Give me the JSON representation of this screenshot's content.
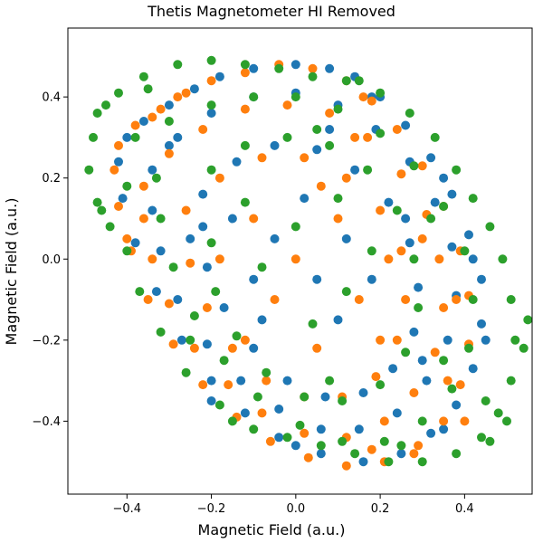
{
  "chart_data": {
    "type": "scatter",
    "title": "Thetis Magnetometer HI Removed",
    "xlabel": "Magnetic Field (a.u.)",
    "ylabel": "Magnetic Field (a.u.)",
    "xlim": [
      -0.54,
      0.56
    ],
    "ylim": [
      -0.58,
      0.57
    ],
    "xticks": [
      -0.4,
      -0.2,
      0.0,
      0.2,
      0.4
    ],
    "xtick_labels": [
      "−0.4",
      "−0.2",
      "0.0",
      "0.2",
      "0.4"
    ],
    "yticks": [
      -0.4,
      -0.2,
      0.0,
      0.2,
      0.4
    ],
    "ytick_labels": [
      "−0.4",
      "−0.2",
      "0.0",
      "0.2",
      "0.4"
    ],
    "grid": false,
    "series": [
      {
        "color": "#1f77b4",
        "points": [
          [
            -0.4,
            0.3
          ],
          [
            -0.36,
            0.34
          ],
          [
            -0.3,
            0.38
          ],
          [
            -0.24,
            0.42
          ],
          [
            -0.18,
            0.45
          ],
          [
            -0.1,
            0.47
          ],
          [
            0.0,
            0.48
          ],
          [
            0.08,
            0.47
          ],
          [
            0.14,
            0.45
          ],
          [
            0.2,
            0.4
          ],
          [
            0.26,
            0.33
          ],
          [
            0.32,
            0.25
          ],
          [
            0.37,
            0.16
          ],
          [
            0.41,
            0.06
          ],
          [
            0.44,
            -0.05
          ],
          [
            0.44,
            -0.16
          ],
          [
            0.42,
            -0.27
          ],
          [
            0.38,
            -0.36
          ],
          [
            0.32,
            -0.43
          ],
          [
            0.25,
            -0.48
          ],
          [
            0.16,
            -0.5
          ],
          [
            0.06,
            -0.48
          ],
          [
            -0.04,
            -0.44
          ],
          [
            -0.12,
            -0.38
          ],
          [
            -0.2,
            -0.3
          ],
          [
            -0.27,
            -0.2
          ],
          [
            -0.33,
            -0.08
          ],
          [
            -0.38,
            0.04
          ],
          [
            -0.41,
            0.15
          ],
          [
            -0.42,
            0.24
          ],
          [
            -0.34,
            0.22
          ],
          [
            -0.28,
            0.3
          ],
          [
            -0.2,
            0.36
          ],
          [
            -0.1,
            0.4
          ],
          [
            0.0,
            0.41
          ],
          [
            0.1,
            0.38
          ],
          [
            0.19,
            0.32
          ],
          [
            0.27,
            0.24
          ],
          [
            0.33,
            0.14
          ],
          [
            0.37,
            0.03
          ],
          [
            0.38,
            -0.09
          ],
          [
            0.36,
            -0.2
          ],
          [
            0.31,
            -0.3
          ],
          [
            0.24,
            -0.38
          ],
          [
            0.15,
            -0.42
          ],
          [
            0.06,
            -0.42
          ],
          [
            -0.04,
            -0.37
          ],
          [
            -0.13,
            -0.3
          ],
          [
            -0.21,
            -0.21
          ],
          [
            -0.28,
            -0.1
          ],
          [
            -0.32,
            0.02
          ],
          [
            -0.34,
            0.12
          ],
          [
            -0.22,
            0.16
          ],
          [
            -0.14,
            0.24
          ],
          [
            -0.05,
            0.28
          ],
          [
            0.05,
            0.27
          ],
          [
            0.14,
            0.22
          ],
          [
            0.22,
            0.14
          ],
          [
            0.27,
            0.04
          ],
          [
            0.29,
            -0.07
          ],
          [
            0.28,
            -0.18
          ],
          [
            0.23,
            -0.27
          ],
          [
            0.16,
            -0.33
          ],
          [
            0.07,
            -0.34
          ],
          [
            -0.02,
            -0.3
          ],
          [
            -0.1,
            -0.22
          ],
          [
            -0.17,
            -0.12
          ],
          [
            -0.21,
            -0.02
          ],
          [
            -0.22,
            0.08
          ],
          [
            0.12,
            0.05
          ],
          [
            0.05,
            -0.05
          ],
          [
            -0.05,
            0.05
          ],
          [
            0.1,
            -0.15
          ],
          [
            -0.1,
            -0.05
          ],
          [
            0.02,
            0.15
          ],
          [
            0.18,
            -0.05
          ],
          [
            -0.15,
            0.1
          ],
          [
            0.08,
            0.32
          ],
          [
            -0.25,
            0.05
          ],
          [
            0.3,
            -0.25
          ],
          [
            0.45,
            -0.2
          ],
          [
            0.42,
            0.0
          ],
          [
            0.35,
            0.2
          ],
          [
            0.18,
            0.4
          ],
          [
            -0.2,
            -0.35
          ],
          [
            0.0,
            -0.46
          ],
          [
            0.35,
            -0.42
          ],
          [
            -0.3,
            0.28
          ],
          [
            0.26,
            0.1
          ],
          [
            -0.08,
            -0.15
          ]
        ]
      },
      {
        "color": "#ff7f0e",
        "points": [
          [
            -0.42,
            0.28
          ],
          [
            -0.38,
            0.33
          ],
          [
            -0.32,
            0.37
          ],
          [
            -0.26,
            0.41
          ],
          [
            -0.2,
            0.44
          ],
          [
            -0.12,
            0.46
          ],
          [
            -0.04,
            0.48
          ],
          [
            0.04,
            0.47
          ],
          [
            0.12,
            0.44
          ],
          [
            0.18,
            0.39
          ],
          [
            0.24,
            0.32
          ],
          [
            0.3,
            0.23
          ],
          [
            0.35,
            0.13
          ],
          [
            0.39,
            0.02
          ],
          [
            0.41,
            -0.09
          ],
          [
            0.41,
            -0.21
          ],
          [
            0.39,
            -0.31
          ],
          [
            0.35,
            -0.4
          ],
          [
            0.29,
            -0.46
          ],
          [
            0.21,
            -0.5
          ],
          [
            0.12,
            -0.51
          ],
          [
            0.03,
            -0.49
          ],
          [
            -0.06,
            -0.45
          ],
          [
            -0.14,
            -0.39
          ],
          [
            -0.22,
            -0.31
          ],
          [
            -0.29,
            -0.21
          ],
          [
            -0.35,
            -0.1
          ],
          [
            -0.39,
            0.02
          ],
          [
            -0.42,
            0.13
          ],
          [
            -0.43,
            0.22
          ],
          [
            -0.36,
            0.18
          ],
          [
            -0.3,
            0.26
          ],
          [
            -0.22,
            0.32
          ],
          [
            -0.12,
            0.37
          ],
          [
            -0.02,
            0.38
          ],
          [
            0.08,
            0.36
          ],
          [
            0.17,
            0.3
          ],
          [
            0.25,
            0.21
          ],
          [
            0.31,
            0.11
          ],
          [
            0.34,
            0.0
          ],
          [
            0.35,
            -0.12
          ],
          [
            0.33,
            -0.23
          ],
          [
            0.28,
            -0.33
          ],
          [
            0.21,
            -0.4
          ],
          [
            0.12,
            -0.44
          ],
          [
            0.02,
            -0.43
          ],
          [
            -0.08,
            -0.38
          ],
          [
            -0.16,
            -0.31
          ],
          [
            -0.24,
            -0.22
          ],
          [
            -0.3,
            -0.11
          ],
          [
            -0.34,
            0.0
          ],
          [
            -0.36,
            0.1
          ],
          [
            -0.26,
            0.12
          ],
          [
            -0.18,
            0.2
          ],
          [
            -0.08,
            0.25
          ],
          [
            0.02,
            0.25
          ],
          [
            0.12,
            0.2
          ],
          [
            0.2,
            0.12
          ],
          [
            0.25,
            0.02
          ],
          [
            0.26,
            -0.1
          ],
          [
            0.24,
            -0.2
          ],
          [
            0.19,
            -0.29
          ],
          [
            0.11,
            -0.34
          ],
          [
            0.02,
            -0.34
          ],
          [
            -0.07,
            -0.3
          ],
          [
            -0.15,
            -0.22
          ],
          [
            -0.21,
            -0.12
          ],
          [
            -0.25,
            -0.01
          ],
          [
            0.1,
            0.1
          ],
          [
            0.0,
            0.0
          ],
          [
            -0.1,
            0.1
          ],
          [
            0.15,
            -0.1
          ],
          [
            -0.05,
            -0.1
          ],
          [
            0.06,
            0.18
          ],
          [
            0.2,
            -0.2
          ],
          [
            -0.18,
            0.0
          ],
          [
            0.16,
            0.4
          ],
          [
            0.4,
            -0.4
          ],
          [
            0.28,
            -0.48
          ],
          [
            0.18,
            -0.47
          ],
          [
            0.38,
            -0.1
          ],
          [
            0.36,
            -0.3
          ],
          [
            -0.34,
            0.35
          ],
          [
            -0.28,
            0.4
          ],
          [
            0.14,
            0.3
          ],
          [
            0.22,
            0.0
          ],
          [
            -0.12,
            -0.2
          ],
          [
            0.05,
            -0.22
          ],
          [
            -0.4,
            0.05
          ],
          [
            0.3,
            0.05
          ]
        ]
      },
      {
        "color": "#2ca02c",
        "points": [
          [
            -0.47,
            0.36
          ],
          [
            -0.48,
            0.3
          ],
          [
            -0.49,
            0.22
          ],
          [
            -0.47,
            0.14
          ],
          [
            -0.44,
            0.08
          ],
          [
            -0.4,
            0.02
          ],
          [
            -0.37,
            -0.08
          ],
          [
            -0.32,
            -0.18
          ],
          [
            -0.26,
            -0.28
          ],
          [
            -0.18,
            -0.36
          ],
          [
            -0.1,
            -0.42
          ],
          [
            -0.02,
            -0.44
          ],
          [
            0.06,
            -0.46
          ],
          [
            0.14,
            -0.48
          ],
          [
            0.22,
            -0.5
          ],
          [
            0.3,
            -0.5
          ],
          [
            0.38,
            -0.48
          ],
          [
            0.44,
            -0.44
          ],
          [
            0.48,
            -0.38
          ],
          [
            0.51,
            -0.3
          ],
          [
            0.52,
            -0.2
          ],
          [
            0.51,
            -0.1
          ],
          [
            0.49,
            0.0
          ],
          [
            0.46,
            0.08
          ],
          [
            0.42,
            0.15
          ],
          [
            0.38,
            0.22
          ],
          [
            0.33,
            0.3
          ],
          [
            0.27,
            0.36
          ],
          [
            0.2,
            0.41
          ],
          [
            0.12,
            0.44
          ],
          [
            0.04,
            0.45
          ],
          [
            -0.04,
            0.47
          ],
          [
            -0.12,
            0.48
          ],
          [
            -0.2,
            0.49
          ],
          [
            -0.28,
            0.48
          ],
          [
            -0.36,
            0.45
          ],
          [
            -0.42,
            0.41
          ],
          [
            -0.45,
            0.38
          ],
          [
            -0.38,
            0.3
          ],
          [
            -0.3,
            0.34
          ],
          [
            -0.2,
            0.38
          ],
          [
            -0.1,
            0.4
          ],
          [
            0.0,
            0.4
          ],
          [
            0.1,
            0.37
          ],
          [
            0.2,
            0.31
          ],
          [
            0.28,
            0.23
          ],
          [
            0.35,
            0.13
          ],
          [
            0.4,
            0.02
          ],
          [
            0.42,
            -0.1
          ],
          [
            0.41,
            -0.22
          ],
          [
            0.37,
            -0.32
          ],
          [
            0.3,
            -0.4
          ],
          [
            0.21,
            -0.45
          ],
          [
            0.11,
            -0.45
          ],
          [
            0.01,
            -0.41
          ],
          [
            -0.09,
            -0.34
          ],
          [
            -0.17,
            -0.25
          ],
          [
            -0.24,
            -0.14
          ],
          [
            -0.29,
            -0.02
          ],
          [
            -0.32,
            0.1
          ],
          [
            -0.33,
            0.2
          ],
          [
            -0.2,
            0.22
          ],
          [
            -0.12,
            0.28
          ],
          [
            -0.02,
            0.3
          ],
          [
            0.08,
            0.28
          ],
          [
            0.17,
            0.22
          ],
          [
            0.24,
            0.12
          ],
          [
            0.28,
            0.0
          ],
          [
            0.29,
            -0.12
          ],
          [
            0.26,
            -0.23
          ],
          [
            0.2,
            -0.31
          ],
          [
            0.11,
            -0.35
          ],
          [
            0.02,
            -0.34
          ],
          [
            -0.07,
            -0.28
          ],
          [
            -0.14,
            -0.19
          ],
          [
            -0.19,
            -0.08
          ],
          [
            -0.2,
            0.04
          ],
          [
            0.1,
            0.15
          ],
          [
            0.0,
            0.08
          ],
          [
            -0.08,
            -0.02
          ],
          [
            0.12,
            -0.08
          ],
          [
            0.04,
            -0.16
          ],
          [
            -0.12,
            0.14
          ],
          [
            0.18,
            0.02
          ],
          [
            0.05,
            0.32
          ],
          [
            -0.25,
            -0.2
          ],
          [
            0.45,
            -0.35
          ],
          [
            0.35,
            -0.25
          ],
          [
            -0.4,
            0.18
          ],
          [
            0.08,
            -0.3
          ],
          [
            0.55,
            -0.15
          ],
          [
            0.54,
            -0.22
          ],
          [
            0.5,
            -0.4
          ],
          [
            0.46,
            -0.45
          ],
          [
            -0.46,
            0.12
          ],
          [
            -0.35,
            0.42
          ],
          [
            0.15,
            0.44
          ],
          [
            0.32,
            0.1
          ],
          [
            -0.15,
            -0.4
          ],
          [
            0.25,
            -0.46
          ]
        ]
      }
    ]
  }
}
